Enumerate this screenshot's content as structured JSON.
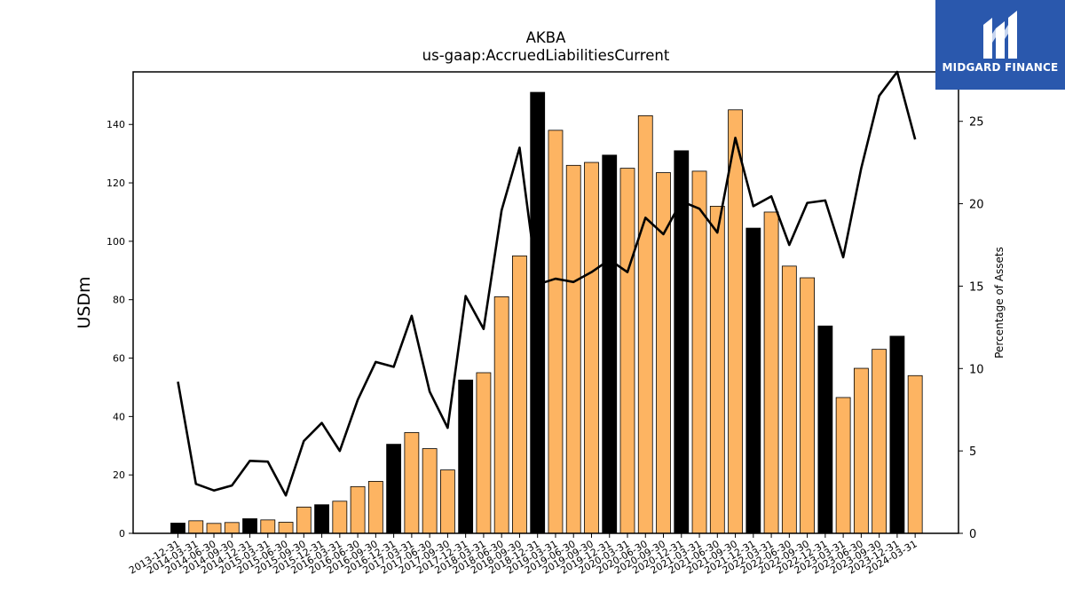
{
  "logo": {
    "text": "MIDGARD FINANCE",
    "icon": "midgard-logo-icon"
  },
  "chart_data": {
    "type": "bar",
    "title": "AKBA",
    "subtitle": "us-gaap:AccruedLiabilitiesCurrent",
    "ylabel": "USDm",
    "y2label": "Percentage of Assets",
    "ylim": [
      0,
      158
    ],
    "y2lim": [
      0,
      28
    ],
    "yticks": [
      0,
      20,
      40,
      60,
      80,
      100,
      120,
      140
    ],
    "y2ticks": [
      0,
      5,
      10,
      15,
      20,
      25
    ],
    "colors": {
      "annual": "#000000",
      "quarter": "#fdb462",
      "line": "#000000"
    },
    "categories": [
      "2013-12-31",
      "2014-03-31",
      "2014-06-30",
      "2014-09-30",
      "2014-12-31",
      "2015-03-31",
      "2015-06-30",
      "2015-09-30",
      "2015-12-31",
      "2016-03-31",
      "2016-06-30",
      "2016-09-30",
      "2016-12-31",
      "2017-03-31",
      "2017-06-30",
      "2017-09-30",
      "2017-12-31",
      "2018-03-31",
      "2018-06-30",
      "2018-09-30",
      "2018-12-31",
      "2019-03-31",
      "2019-06-30",
      "2019-09-30",
      "2019-12-31",
      "2020-03-31",
      "2020-06-30",
      "2020-09-30",
      "2020-12-31",
      "2021-03-31",
      "2021-06-30",
      "2021-09-30",
      "2021-12-31",
      "2022-03-31",
      "2022-06-30",
      "2022-09-30",
      "2022-12-31",
      "2023-03-31",
      "2023-06-30",
      "2023-09-30",
      "2023-12-31",
      "2024-03-31"
    ],
    "series": [
      {
        "values": [
          3.5,
          4.3,
          3.4,
          3.7,
          5.0,
          4.6,
          3.8,
          9.0,
          9.8,
          11.0,
          16.0,
          17.8,
          30.5,
          34.5,
          29.0,
          21.7,
          52.5,
          55.0,
          81.0,
          95.0,
          151.0,
          138.0,
          126.0,
          127.0,
          129.5,
          125.0,
          143.0,
          123.5,
          131.0,
          124.0,
          112.0,
          145.0,
          104.5,
          110.0,
          91.5,
          87.5,
          71.0,
          46.5,
          56.5,
          63.0,
          67.5,
          54.0
        ],
        "highlight": [
          true,
          false,
          false,
          false,
          true,
          false,
          false,
          false,
          true,
          false,
          false,
          false,
          true,
          false,
          false,
          false,
          true,
          false,
          false,
          false,
          true,
          false,
          false,
          false,
          true,
          false,
          false,
          false,
          true,
          false,
          false,
          false,
          true,
          false,
          false,
          false,
          true,
          false,
          false,
          false,
          true,
          false
        ]
      },
      {
        "axis": "right",
        "values": [
          9.2,
          3.0,
          2.6,
          2.9,
          4.4,
          4.35,
          2.3,
          5.6,
          6.7,
          5.0,
          8.1,
          10.4,
          10.1,
          13.2,
          8.6,
          6.4,
          14.4,
          12.4,
          19.6,
          23.4,
          15.1,
          15.45,
          15.25,
          15.85,
          16.6,
          15.85,
          19.15,
          18.15,
          20.15,
          19.7,
          18.25,
          24.0,
          19.85,
          20.45,
          17.5,
          20.05,
          20.2,
          16.75,
          22.15,
          26.55,
          28.0,
          23.9
        ]
      }
    ]
  }
}
